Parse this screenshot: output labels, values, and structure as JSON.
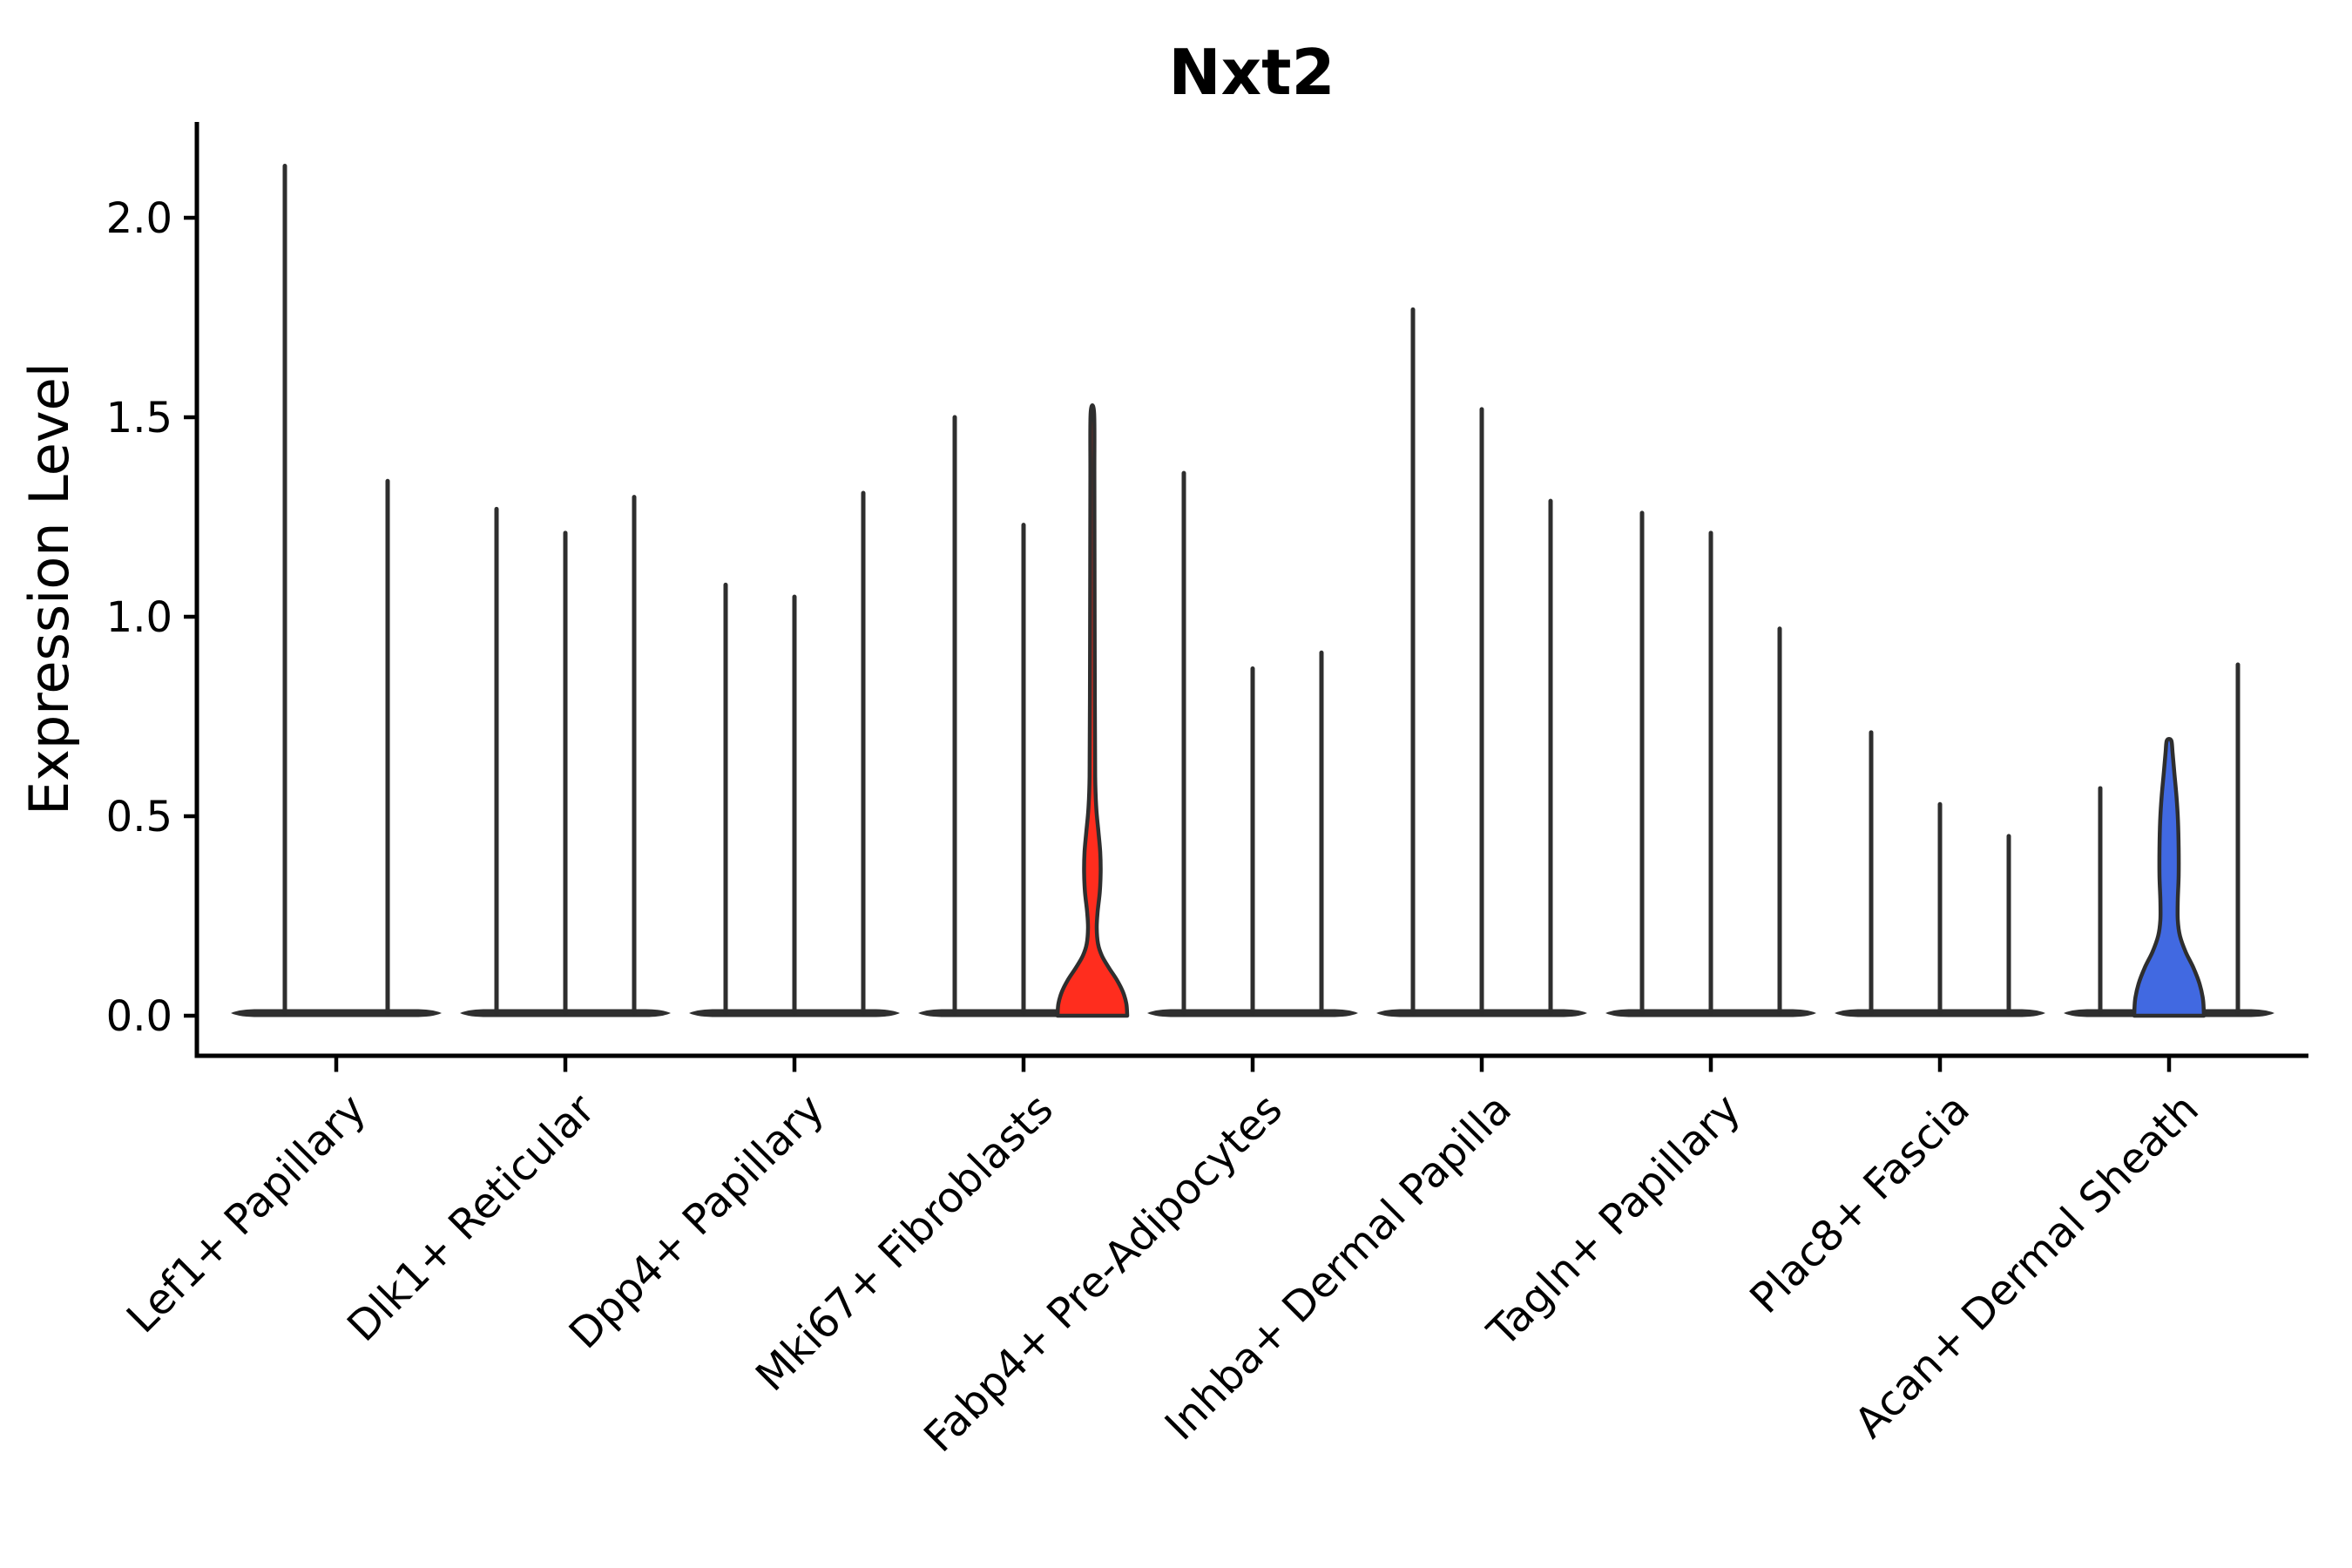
{
  "chart_data": {
    "type": "violin",
    "title": "Nxt2",
    "ylabel": "Expression Level",
    "xlabel": "",
    "ylim": [
      0,
      2.25
    ],
    "yticks": [
      0.0,
      0.5,
      1.0,
      1.5,
      2.0
    ],
    "ytick_labels": [
      "0.0",
      "0.5",
      "1.0",
      "1.5",
      "2.0"
    ],
    "grid": false,
    "legend": "none",
    "categories": [
      "Lef1+ Papillary",
      "Dlk1+ Reticular",
      "Dpp4+ Papillary",
      "Mki67+ Fibroblasts",
      "Fabp4+ Pre-Adipocytes",
      "Inhba+ Dermal Papilla",
      "Tagln+ Papillary",
      "Plac8+ Fascia",
      "Acan+ Dermal Sheath"
    ],
    "groups": [
      {
        "label": "Lef1+ Papillary",
        "violins": [
          {
            "max": 2.13,
            "style": "plain"
          },
          {
            "max": 1.34,
            "style": "plain"
          }
        ]
      },
      {
        "label": "Dlk1+ Reticular",
        "violins": [
          {
            "max": 1.27,
            "style": "plain"
          },
          {
            "max": 1.21,
            "style": "plain"
          },
          {
            "max": 1.3,
            "style": "plain"
          }
        ]
      },
      {
        "label": "Dpp4+ Papillary",
        "violins": [
          {
            "max": 1.08,
            "style": "plain"
          },
          {
            "max": 1.05,
            "style": "plain"
          },
          {
            "max": 1.31,
            "style": "plain"
          }
        ]
      },
      {
        "label": "Mki67+ Fibroblasts",
        "violins": [
          {
            "max": 1.5,
            "style": "plain"
          },
          {
            "max": 1.23,
            "style": "plain"
          },
          {
            "max": 1.51,
            "style": "red"
          }
        ]
      },
      {
        "label": "Fabp4+ Pre-Adipocytes",
        "violins": [
          {
            "max": 1.36,
            "style": "plain"
          },
          {
            "max": 0.87,
            "style": "plain"
          },
          {
            "max": 0.91,
            "style": "plain"
          }
        ]
      },
      {
        "label": "Inhba+ Dermal Papilla",
        "violins": [
          {
            "max": 1.77,
            "style": "plain"
          },
          {
            "max": 1.52,
            "style": "plain"
          },
          {
            "max": 1.29,
            "style": "plain"
          }
        ]
      },
      {
        "label": "Tagln+ Papillary",
        "violins": [
          {
            "max": 1.26,
            "style": "plain"
          },
          {
            "max": 1.21,
            "style": "plain"
          },
          {
            "max": 0.97,
            "style": "plain"
          }
        ]
      },
      {
        "label": "Plac8+ Fascia",
        "violins": [
          {
            "max": 0.71,
            "style": "plain"
          },
          {
            "max": 0.53,
            "style": "plain"
          },
          {
            "max": 0.45,
            "style": "plain"
          }
        ]
      },
      {
        "label": "Acan+ Dermal Sheath",
        "violins": [
          {
            "max": 0.57,
            "style": "plain"
          },
          {
            "max": 0.69,
            "style": "blue"
          },
          {
            "max": 0.88,
            "style": "plain"
          }
        ]
      }
    ],
    "violin_profiles": {
      "red": [
        [
          0.0,
          40
        ],
        [
          0.03,
          39
        ],
        [
          0.06,
          35
        ],
        [
          0.09,
          28
        ],
        [
          0.12,
          19
        ],
        [
          0.15,
          11
        ],
        [
          0.18,
          6.5
        ],
        [
          0.22,
          5
        ],
        [
          0.26,
          6
        ],
        [
          0.31,
          8.5
        ],
        [
          0.36,
          9.5
        ],
        [
          0.41,
          9
        ],
        [
          0.46,
          7
        ],
        [
          0.52,
          4.5
        ],
        [
          0.6,
          3.2
        ],
        [
          0.8,
          2.8
        ],
        [
          1.1,
          2.5
        ],
        [
          1.35,
          2.3
        ],
        [
          1.51,
          2
        ]
      ],
      "blue": [
        [
          0.0,
          40
        ],
        [
          0.04,
          39
        ],
        [
          0.08,
          35
        ],
        [
          0.12,
          28
        ],
        [
          0.16,
          19
        ],
        [
          0.2,
          12.5
        ],
        [
          0.24,
          10
        ],
        [
          0.29,
          10
        ],
        [
          0.35,
          11
        ],
        [
          0.42,
          11
        ],
        [
          0.49,
          10.2
        ],
        [
          0.55,
          8.5
        ],
        [
          0.61,
          6
        ],
        [
          0.66,
          4
        ],
        [
          0.69,
          2.5
        ]
      ]
    },
    "colors": {
      "red_fill": "#ff2d1e",
      "blue_fill": "#4169e1",
      "violin_line": "#2e2e2e",
      "zero_band": "#2f2f2f",
      "axis": "#000000",
      "background": "#ffffff"
    }
  }
}
